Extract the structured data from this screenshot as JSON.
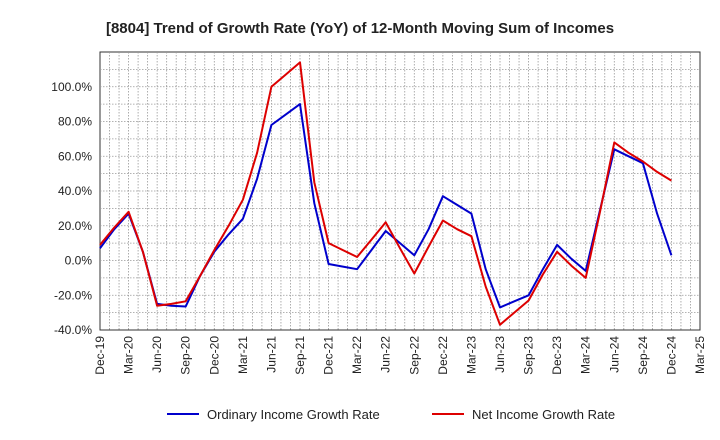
{
  "chart_data": {
    "type": "line",
    "title": "[8804]  Trend of Growth Rate (YoY) of 12-Month Moving Sum of Incomes",
    "xlabel": "",
    "ylabel": "",
    "ylim": [
      -40,
      120
    ],
    "y_ticks": [
      -40,
      -20,
      0,
      20,
      40,
      60,
      80,
      100
    ],
    "y_tick_labels": [
      "-40.0%",
      "-20.0%",
      "0.0%",
      "20.0%",
      "40.0%",
      "60.0%",
      "80.0%",
      "100.0%"
    ],
    "x_tick_labels": [
      "Dec-19",
      "Mar-20",
      "Jun-20",
      "Sep-20",
      "Dec-20",
      "Mar-21",
      "Jun-21",
      "Sep-21",
      "Dec-21",
      "Mar-22",
      "Jun-22",
      "Sep-22",
      "Dec-22",
      "Mar-23",
      "Jun-23",
      "Sep-23",
      "Dec-23",
      "Mar-24",
      "Jun-24",
      "Sep-24",
      "Dec-24",
      "Mar-25"
    ],
    "grid": true,
    "legend_position": "bottom",
    "series": [
      {
        "name": "Ordinary Income Growth Rate",
        "color": "#0000cc",
        "values": [
          7,
          18,
          27,
          5,
          -25,
          -26,
          -26.5,
          -9,
          5,
          15,
          24,
          47,
          78,
          84,
          90,
          33,
          -2,
          -3.5,
          -5,
          6,
          17,
          10,
          3,
          18,
          37,
          32,
          27,
          -5,
          -27,
          -23.5,
          -20,
          -5,
          9,
          1,
          -6,
          29,
          64,
          60,
          56,
          27,
          3
        ]
      },
      {
        "name": "Net Income Growth Rate",
        "color": "#dd0000",
        "values": [
          9,
          19,
          28,
          5,
          -26,
          -25,
          -23.5,
          -9,
          6,
          20,
          35,
          62,
          100,
          107,
          114,
          45,
          10,
          6,
          2,
          12,
          22,
          7,
          -7.5,
          8,
          23,
          18,
          14,
          -15,
          -37,
          -30,
          -23,
          -8,
          5,
          -3,
          -10,
          28,
          68,
          62,
          57,
          51,
          46
        ]
      }
    ]
  }
}
